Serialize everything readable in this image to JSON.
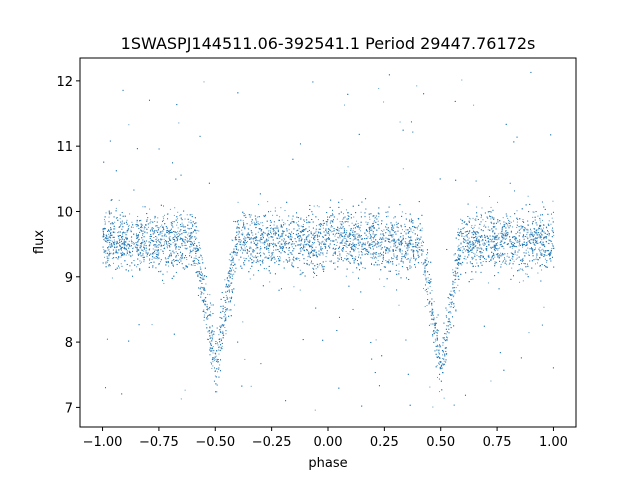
{
  "chart_data": {
    "type": "scatter",
    "title": "1SWASPJ144511.06-392541.1 Period 29447.76172s",
    "xlabel": "phase",
    "ylabel": "flux",
    "xlim": [
      -1.1,
      1.1
    ],
    "ylim": [
      6.7,
      12.35
    ],
    "x_ticks": [
      -1.0,
      -0.75,
      -0.5,
      -0.25,
      0.0,
      0.25,
      0.5,
      0.75,
      1.0
    ],
    "x_tick_labels": [
      "−1.00",
      "−0.75",
      "−0.50",
      "−0.25",
      "0.00",
      "0.25",
      "0.50",
      "0.75",
      "1.00"
    ],
    "y_ticks": [
      7,
      8,
      9,
      10,
      11,
      12
    ],
    "y_tick_labels": [
      "7",
      "8",
      "9",
      "10",
      "11",
      "12"
    ],
    "grid": false,
    "color": "#1f77b4",
    "series": [
      {
        "name": "",
        "x_range": [
          -1.0,
          1.0
        ],
        "baseline_flux": 9.55,
        "scatter_flux": 0.22,
        "primary_eclipse": {
          "phase_center": -0.5,
          "min_flux": 7.6,
          "half_width": 0.09
        },
        "secondary_eclipse": {
          "phase_center": 0.5,
          "min_flux": 7.6,
          "half_width": 0.09
        },
        "outlier_flux_range": [
          6.95,
          12.15
        ]
      }
    ]
  }
}
